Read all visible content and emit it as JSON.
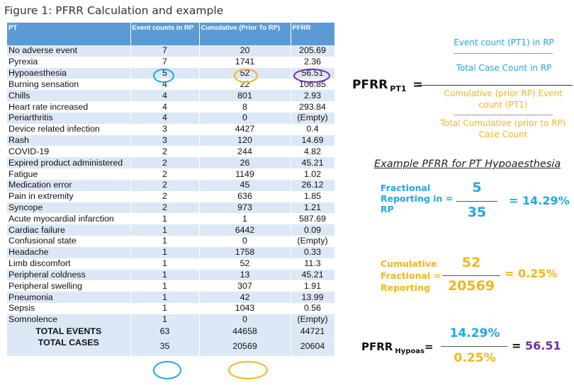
{
  "figure_title": "Figure 1: PFRR Calculation and example",
  "table": {
    "headers": [
      "PT",
      "Event counts in RP",
      "Cumulative (Prior To RP)",
      "PFRR"
    ],
    "rows": [
      [
        "No adverse event",
        "7",
        "20",
        "205.69"
      ],
      [
        "Pyrexia",
        "7",
        "1741",
        "2.36"
      ],
      [
        "Hypoaesthesia",
        "5",
        "52",
        "56.51"
      ],
      [
        "Burning sensation",
        "4",
        "22",
        "106.85"
      ],
      [
        "Chills",
        "4",
        "801",
        "2.93"
      ],
      [
        "Heart rate increased",
        "4",
        "8",
        "293.84"
      ],
      [
        "Periarthritis",
        "4",
        "0",
        "(Empty)"
      ],
      [
        "Device related infection",
        "3",
        "4427",
        "0.4"
      ],
      [
        "Rash",
        "3",
        "120",
        "14.69"
      ],
      [
        "COVID-19",
        "2",
        "244",
        "4.82"
      ],
      [
        "Expired product administered",
        "2",
        "26",
        "45.21"
      ],
      [
        "Fatigue",
        "2",
        "1149",
        "1.02"
      ],
      [
        "Medication error",
        "2",
        "45",
        "26.12"
      ],
      [
        "Pain in extremity",
        "2",
        "636",
        "1.85"
      ],
      [
        "Syncope",
        "2",
        "973",
        "1.21"
      ],
      [
        "Acute myocardial infarction",
        "1",
        "1",
        "587.69"
      ],
      [
        "Cardiac failure",
        "1",
        "6442",
        "0.09"
      ],
      [
        "Confusional state",
        "1",
        "0",
        "(Empty)"
      ],
      [
        "Headache",
        "1",
        "1758",
        "0.33"
      ],
      [
        "Limb discomfort",
        "1",
        "52",
        "11.3"
      ],
      [
        "Peripheral coldness",
        "1",
        "13",
        "45.21"
      ],
      [
        "Peripheral swelling",
        "1",
        "307",
        "1.91"
      ],
      [
        "Pneumonia",
        "1",
        "42",
        "13.99"
      ],
      [
        "Sepsis",
        "1",
        "1043",
        "0.56"
      ],
      [
        "Somnolence",
        "1",
        "0",
        "(Empty)"
      ]
    ],
    "total_events": {
      "label": "TOTAL EVENTS",
      "events": "63",
      "cumulative": "44658",
      "pfrr": "44721"
    },
    "total_cases": {
      "label": "TOTAL CASES",
      "events": "35",
      "cumulative": "20569",
      "pfrr": "20604"
    }
  },
  "formula": {
    "lhs": "PFRR",
    "lhs_sub": "PT1",
    "eq": "=",
    "numerator_top": "Event count (PT1) in RP",
    "numerator_bottom": "Total Case Count in RP",
    "denominator_top_line1": "Cumulative (prior RP) Event",
    "denominator_top_line2": "count (PT1)",
    "denominator_bottom_line1": "Total Cumulative (prior to RP)",
    "denominator_bottom_line2": "Case Count"
  },
  "example": {
    "title": "Example PFRR for PT Hypoaesthesia",
    "fractional": {
      "label_line1": "Fractional",
      "label_line2": "Reporting in =",
      "label_line3": "RP",
      "numerator": "5",
      "denominator": "35",
      "result": "= 14.29%"
    },
    "cumulative": {
      "label_line1": "Cumulative",
      "label_line2": "Fractional =",
      "label_line3": "Reporting",
      "numerator": "52",
      "denominator": "20569",
      "result": "= 0.25%"
    },
    "final": {
      "lhs": "PFRR",
      "lhs_sub": "Hypoas",
      "eq": "=",
      "numerator": "14.29%",
      "denominator": "0.25%",
      "result_eq": "=",
      "result": "56.51"
    }
  },
  "colors": {
    "header_blue": "#5b9bd5",
    "row_band": "#dde8f6",
    "label_blue": "#1ea7e8",
    "label_orange": "#f4b51c",
    "purple": "#7030a0"
  }
}
